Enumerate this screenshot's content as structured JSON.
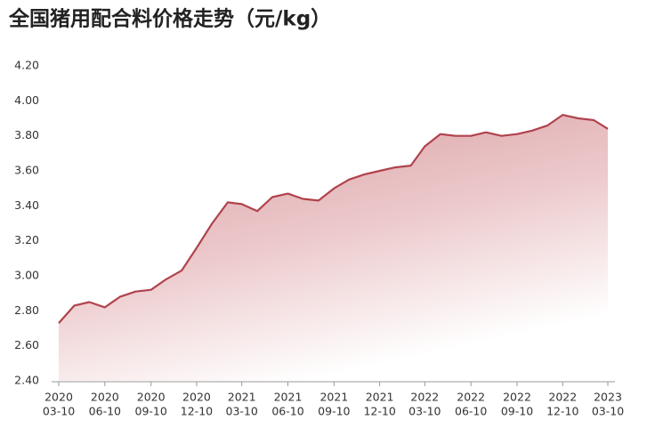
{
  "chart_data": {
    "type": "area",
    "title": "全国猪用配合料价格走势（元/kg）",
    "x": [
      "2020-03-10",
      "2020-04-10",
      "2020-05-10",
      "2020-06-10",
      "2020-07-10",
      "2020-08-10",
      "2020-09-10",
      "2020-10-10",
      "2020-11-10",
      "2020-12-10",
      "2021-01-10",
      "2021-02-10",
      "2021-03-10",
      "2021-04-10",
      "2021-05-10",
      "2021-06-10",
      "2021-07-10",
      "2021-08-10",
      "2021-09-10",
      "2021-10-10",
      "2021-11-10",
      "2021-12-10",
      "2022-01-10",
      "2022-02-10",
      "2022-03-10",
      "2022-04-10",
      "2022-05-10",
      "2022-06-10",
      "2022-07-10",
      "2022-08-10",
      "2022-09-10",
      "2022-10-10",
      "2022-11-10",
      "2022-12-10",
      "2023-01-10",
      "2023-02-10",
      "2023-03-10"
    ],
    "values": [
      2.73,
      2.83,
      2.85,
      2.82,
      2.88,
      2.91,
      2.92,
      2.98,
      3.03,
      3.16,
      3.3,
      3.42,
      3.41,
      3.37,
      3.45,
      3.47,
      3.44,
      3.43,
      3.5,
      3.55,
      3.58,
      3.6,
      3.62,
      3.63,
      3.74,
      3.81,
      3.8,
      3.8,
      3.82,
      3.8,
      3.81,
      3.83,
      3.86,
      3.92,
      3.9,
      3.89,
      3.84
    ],
    "color": "#b0434d",
    "xlim": [
      "2020-03-10",
      "2023-03-10"
    ],
    "xticks": [
      {
        "value": "2020-03-10",
        "label": [
          "2020",
          "03-10"
        ]
      },
      {
        "value": "2020-06-10",
        "label": [
          "2020",
          "06-10"
        ]
      },
      {
        "value": "2020-09-10",
        "label": [
          "2020",
          "09-10"
        ]
      },
      {
        "value": "2020-12-10",
        "label": [
          "2020",
          "12-10"
        ]
      },
      {
        "value": "2021-03-10",
        "label": [
          "2021",
          "03-10"
        ]
      },
      {
        "value": "2021-06-10",
        "label": [
          "2021",
          "06-10"
        ]
      },
      {
        "value": "2021-09-10",
        "label": [
          "2021",
          "09-10"
        ]
      },
      {
        "value": "2021-12-10",
        "label": [
          "2021",
          "12-10"
        ]
      },
      {
        "value": "2022-03-10",
        "label": [
          "2022",
          "03-10"
        ]
      },
      {
        "value": "2022-06-10",
        "label": [
          "2022",
          "06-10"
        ]
      },
      {
        "value": "2022-09-10",
        "label": [
          "2022",
          "09-10"
        ]
      },
      {
        "value": "2022-12-10",
        "label": [
          "2022",
          "12-10"
        ]
      },
      {
        "value": "2023-03-10",
        "label": [
          "2023",
          "03-10"
        ]
      }
    ],
    "ylim": [
      2.4,
      4.2
    ],
    "yticks": [
      {
        "value": 2.4,
        "label": "2.40"
      },
      {
        "value": 2.6,
        "label": "2.60"
      },
      {
        "value": 2.8,
        "label": "2.80"
      },
      {
        "value": 3.0,
        "label": "3.00"
      },
      {
        "value": 3.2,
        "label": "3.20"
      },
      {
        "value": 3.4,
        "label": "3.40"
      },
      {
        "value": 3.6,
        "label": "3.60"
      },
      {
        "value": 3.8,
        "label": "3.80"
      },
      {
        "value": 4.0,
        "label": "4.00"
      },
      {
        "value": 4.2,
        "label": "4.20"
      }
    ],
    "grid": false
  }
}
